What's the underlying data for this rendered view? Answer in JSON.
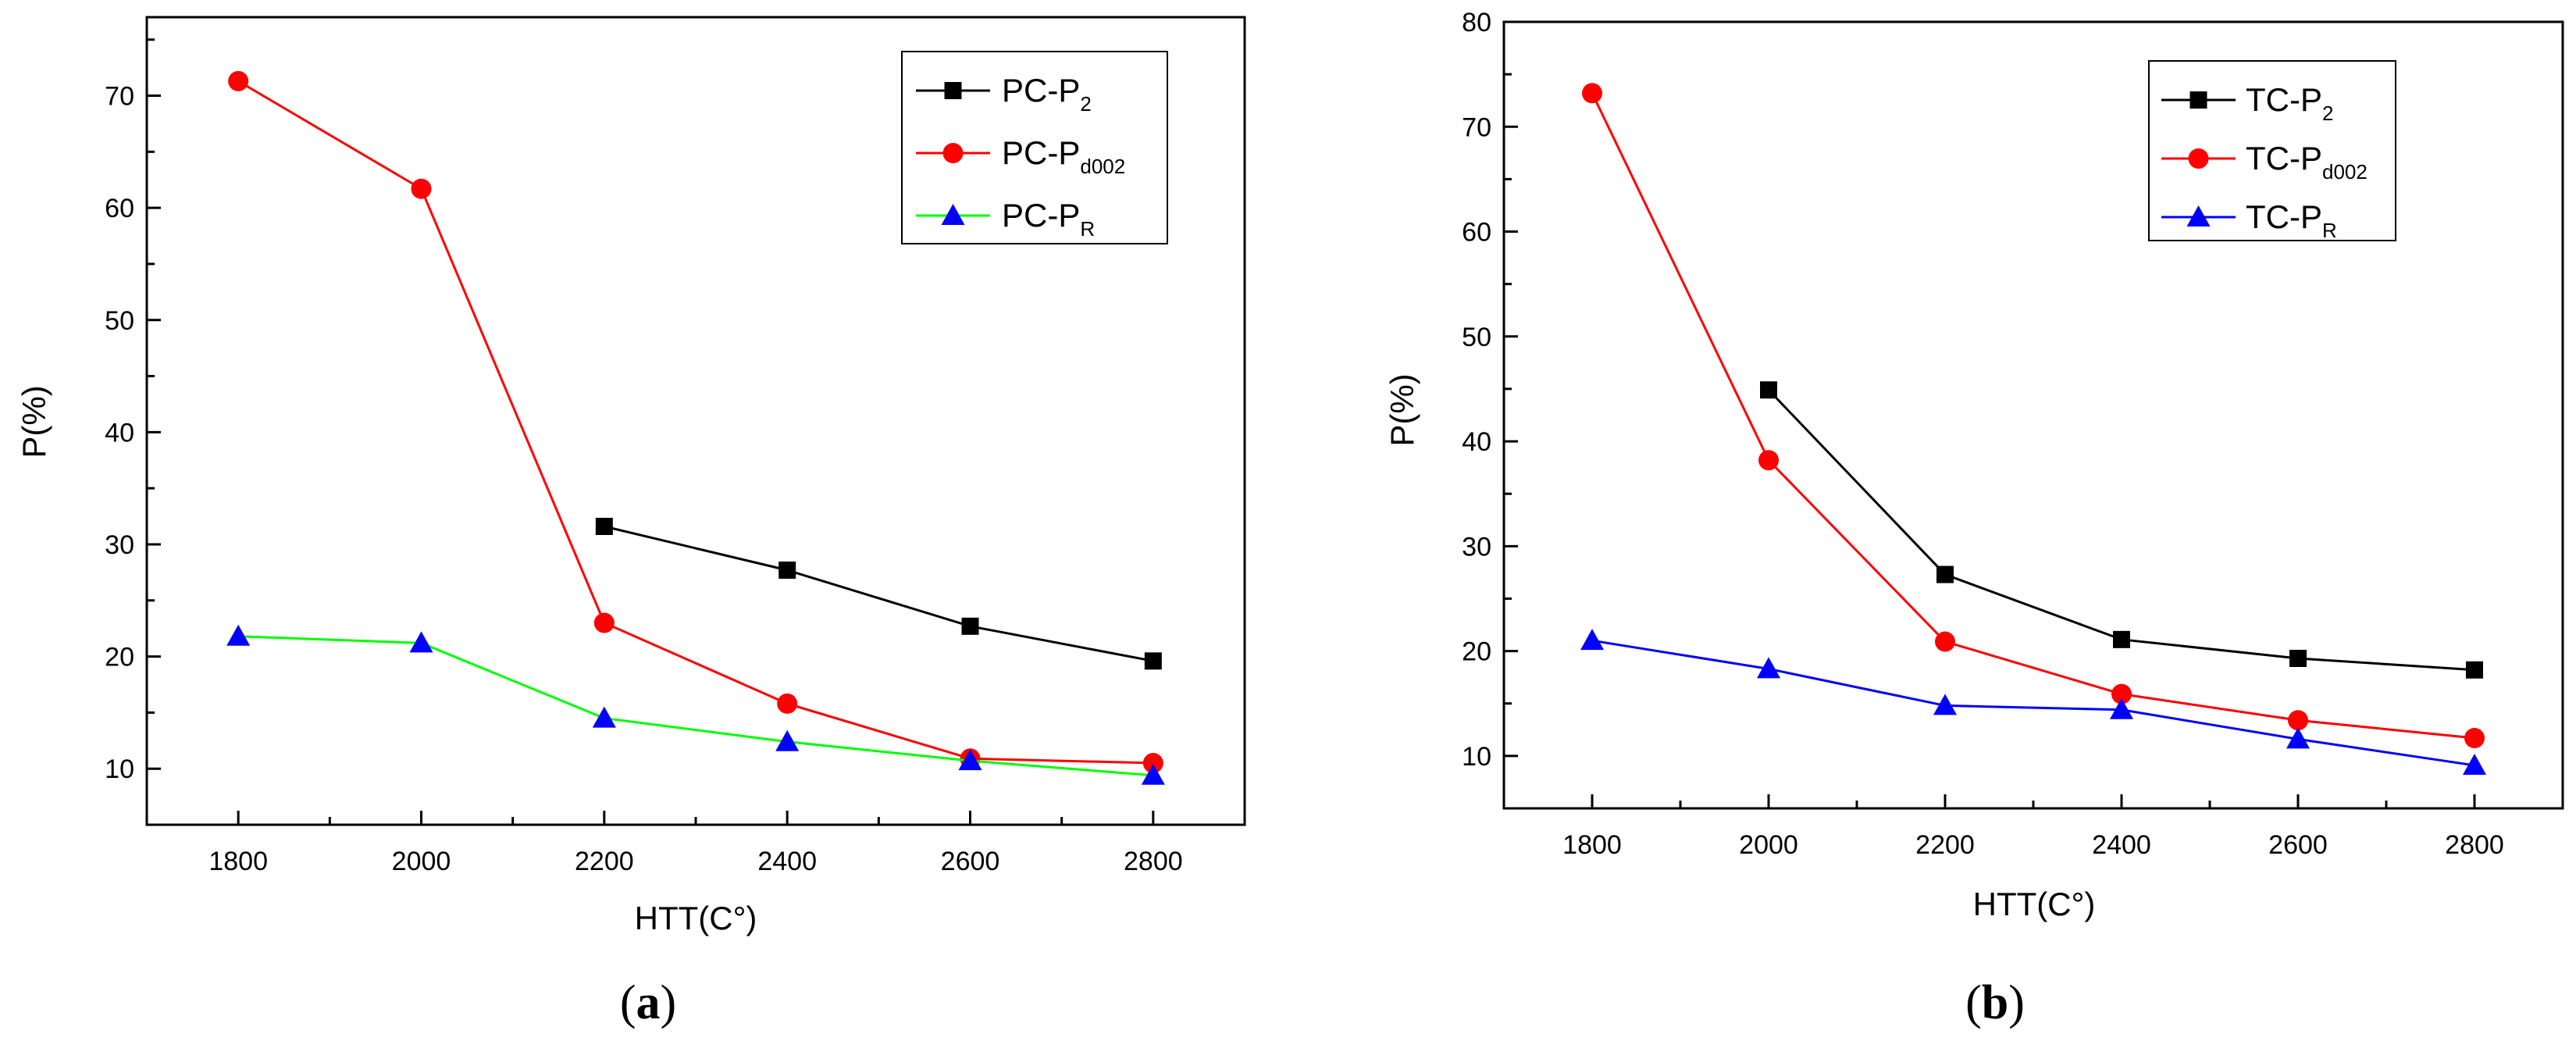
{
  "chart_data": [
    {
      "panel": "a",
      "panel_label": "(a)",
      "panel_letter": "a",
      "type": "line",
      "xlabel": "HTT(C°)",
      "ylabel": "P(%)",
      "xlim": [
        1700,
        2900
      ],
      "ylim": [
        5,
        77
      ],
      "xticks": [
        1800,
        2000,
        2200,
        2400,
        2600,
        2800
      ],
      "yticks": [
        10,
        20,
        30,
        40,
        50,
        60,
        70
      ],
      "legend_position": "top-right",
      "series": [
        {
          "name": "PC-P2",
          "prefix": "PC-P",
          "sub": "2",
          "color": "#000000",
          "marker": "square",
          "x": [
            2200,
            2400,
            2600,
            2800
          ],
          "y": [
            31.6,
            27.7,
            22.7,
            19.6
          ]
        },
        {
          "name": "PC-Pd002",
          "prefix": "PC-P",
          "sub": "d002",
          "color": "#ff0000",
          "marker": "circle",
          "x": [
            1800,
            2000,
            2200,
            2400,
            2600,
            2800
          ],
          "y": [
            71.3,
            61.7,
            23.0,
            15.8,
            10.9,
            10.5
          ]
        },
        {
          "name": "PC-PR",
          "prefix": "PC-P",
          "sub": "R",
          "color": "#00ff00",
          "marker_color": "#0000ff",
          "marker": "triangle",
          "x": [
            1800,
            2000,
            2200,
            2400,
            2600,
            2800
          ],
          "y": [
            21.8,
            21.2,
            14.5,
            12.4,
            10.7,
            9.4
          ]
        }
      ]
    },
    {
      "panel": "b",
      "panel_label": "(b)",
      "panel_letter": "b",
      "type": "line",
      "xlabel": "HTT(C°)",
      "ylabel": "P(%)",
      "xlim": [
        1700,
        2900
      ],
      "ylim": [
        5,
        80
      ],
      "xticks": [
        1800,
        2000,
        2200,
        2400,
        2600,
        2800
      ],
      "yticks": [
        10,
        20,
        30,
        40,
        50,
        60,
        70,
        80
      ],
      "legend_position": "top-right",
      "series": [
        {
          "name": "TC-P2",
          "prefix": "TC-P",
          "sub": "2",
          "color": "#000000",
          "marker": "square",
          "x": [
            2000,
            2200,
            2400,
            2600,
            2800
          ],
          "y": [
            44.9,
            27.3,
            21.1,
            19.3,
            18.2
          ]
        },
        {
          "name": "TC-Pd002",
          "prefix": "TC-P",
          "sub": "d002",
          "color": "#ff0000",
          "marker": "circle",
          "x": [
            1800,
            2000,
            2200,
            2400,
            2600,
            2800
          ],
          "y": [
            73.2,
            38.2,
            20.9,
            15.9,
            13.4,
            11.7
          ]
        },
        {
          "name": "TC-PR",
          "prefix": "TC-P",
          "sub": "R",
          "color": "#0000ff",
          "marker_color": "#0000ff",
          "marker": "triangle",
          "x": [
            1800,
            2000,
            2200,
            2400,
            2600,
            2800
          ],
          "y": [
            21.0,
            18.3,
            14.8,
            14.4,
            11.6,
            9.1
          ]
        }
      ]
    }
  ]
}
